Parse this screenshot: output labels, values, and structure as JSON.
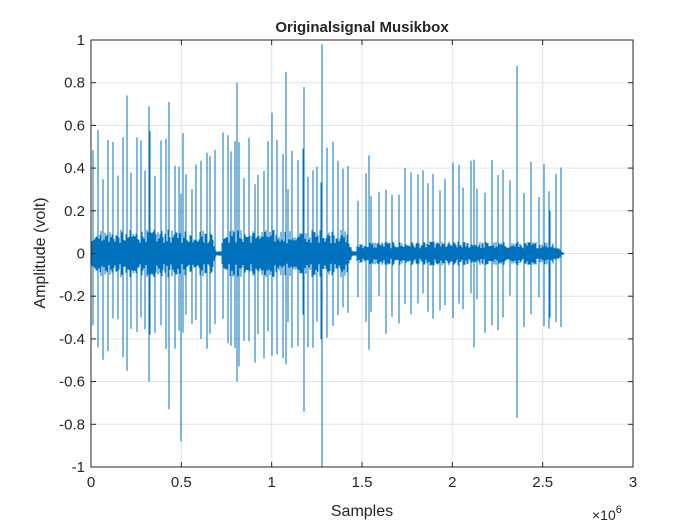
{
  "chart_data": {
    "type": "line",
    "title": "Originalsignal Musikbox",
    "xlabel": "Samples",
    "ylabel": "Amplitude (volt)",
    "x_exponent_label": {
      "base": "×10",
      "exp": "6"
    },
    "xlim": [
      0,
      3000000
    ],
    "ylim": [
      -1,
      1
    ],
    "xticks": [
      0,
      500000,
      1000000,
      1500000,
      2000000,
      2500000,
      3000000
    ],
    "xtick_labels": [
      "0",
      "0.5",
      "1",
      "1.5",
      "2",
      "2.5",
      "3"
    ],
    "yticks": [
      -1,
      -0.8,
      -0.6,
      -0.4,
      -0.2,
      0,
      0.2,
      0.4,
      0.6,
      0.8,
      1
    ],
    "ytick_labels": [
      "-1",
      "-0.8",
      "-0.6",
      "-0.4",
      "-0.2",
      "0",
      "0.2",
      "0.4",
      "0.6",
      "0.8",
      "1"
    ],
    "grid": true,
    "line_color": "#0072BD",
    "signal_end": 2620000,
    "segments": [
      {
        "start": 0,
        "end": 700000,
        "base_amplitude": 0.08
      },
      {
        "start": 720000,
        "end": 1450000,
        "base_amplitude": 0.08
      },
      {
        "start": 1470000,
        "end": 2620000,
        "base_amplitude": 0.04
      }
    ],
    "notable_peaks": [
      {
        "x": 1280000,
        "max": 0.98,
        "min": -1.0
      },
      {
        "x": 2360000,
        "max": 0.88,
        "min": -0.77
      },
      {
        "x": 500000,
        "max": 0.28,
        "min": -0.88
      },
      {
        "x": 430000,
        "max": 0.71,
        "min": -0.73
      },
      {
        "x": 1180000,
        "max": 0.78,
        "min": -0.74
      },
      {
        "x": 810000,
        "max": 0.8,
        "min": -0.6
      },
      {
        "x": 1080000,
        "max": 0.85,
        "min": -0.52
      },
      {
        "x": 200000,
        "max": 0.74,
        "min": -0.55
      },
      {
        "x": 320000,
        "max": 0.69,
        "min": -0.6
      },
      {
        "x": 1000000,
        "max": 0.66,
        "min": -0.48
      },
      {
        "x": 1540000,
        "max": 0.46,
        "min": -0.45
      },
      {
        "x": 2120000,
        "max": 0.44,
        "min": -0.44
      },
      {
        "x": 2540000,
        "max": 0.2,
        "min": -0.3
      }
    ]
  },
  "colors": {
    "axes_edge": "#262626",
    "grid": "#e3e3e3",
    "signal": "#0072BD"
  }
}
